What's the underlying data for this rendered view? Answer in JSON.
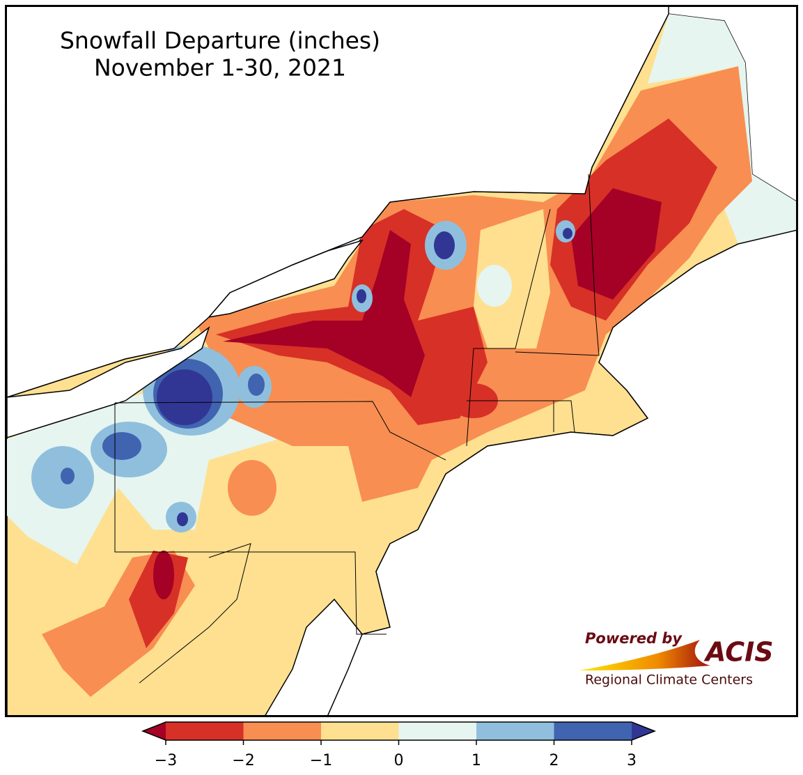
{
  "map": {
    "title": [
      "Snowfall Departure (inches)",
      "November 1-30, 2021"
    ],
    "colorbar": {
      "ticks": [
        {
          "value": -3,
          "label": "−3"
        },
        {
          "value": -2,
          "label": "−2"
        },
        {
          "value": -1,
          "label": "−1"
        },
        0,
        1,
        2,
        3
      ],
      "colors": [
        "#d73027",
        "#f88e52",
        "#fee090",
        "#e6f5ef",
        "#8fbfdd",
        "#4064b0"
      ],
      "extend_colors": [
        "#a50026",
        "#313695"
      ]
    },
    "logo": {
      "tagline": "Powered by",
      "name": "ACIS",
      "subtitle": "Regional Climate Centers"
    }
  }
}
